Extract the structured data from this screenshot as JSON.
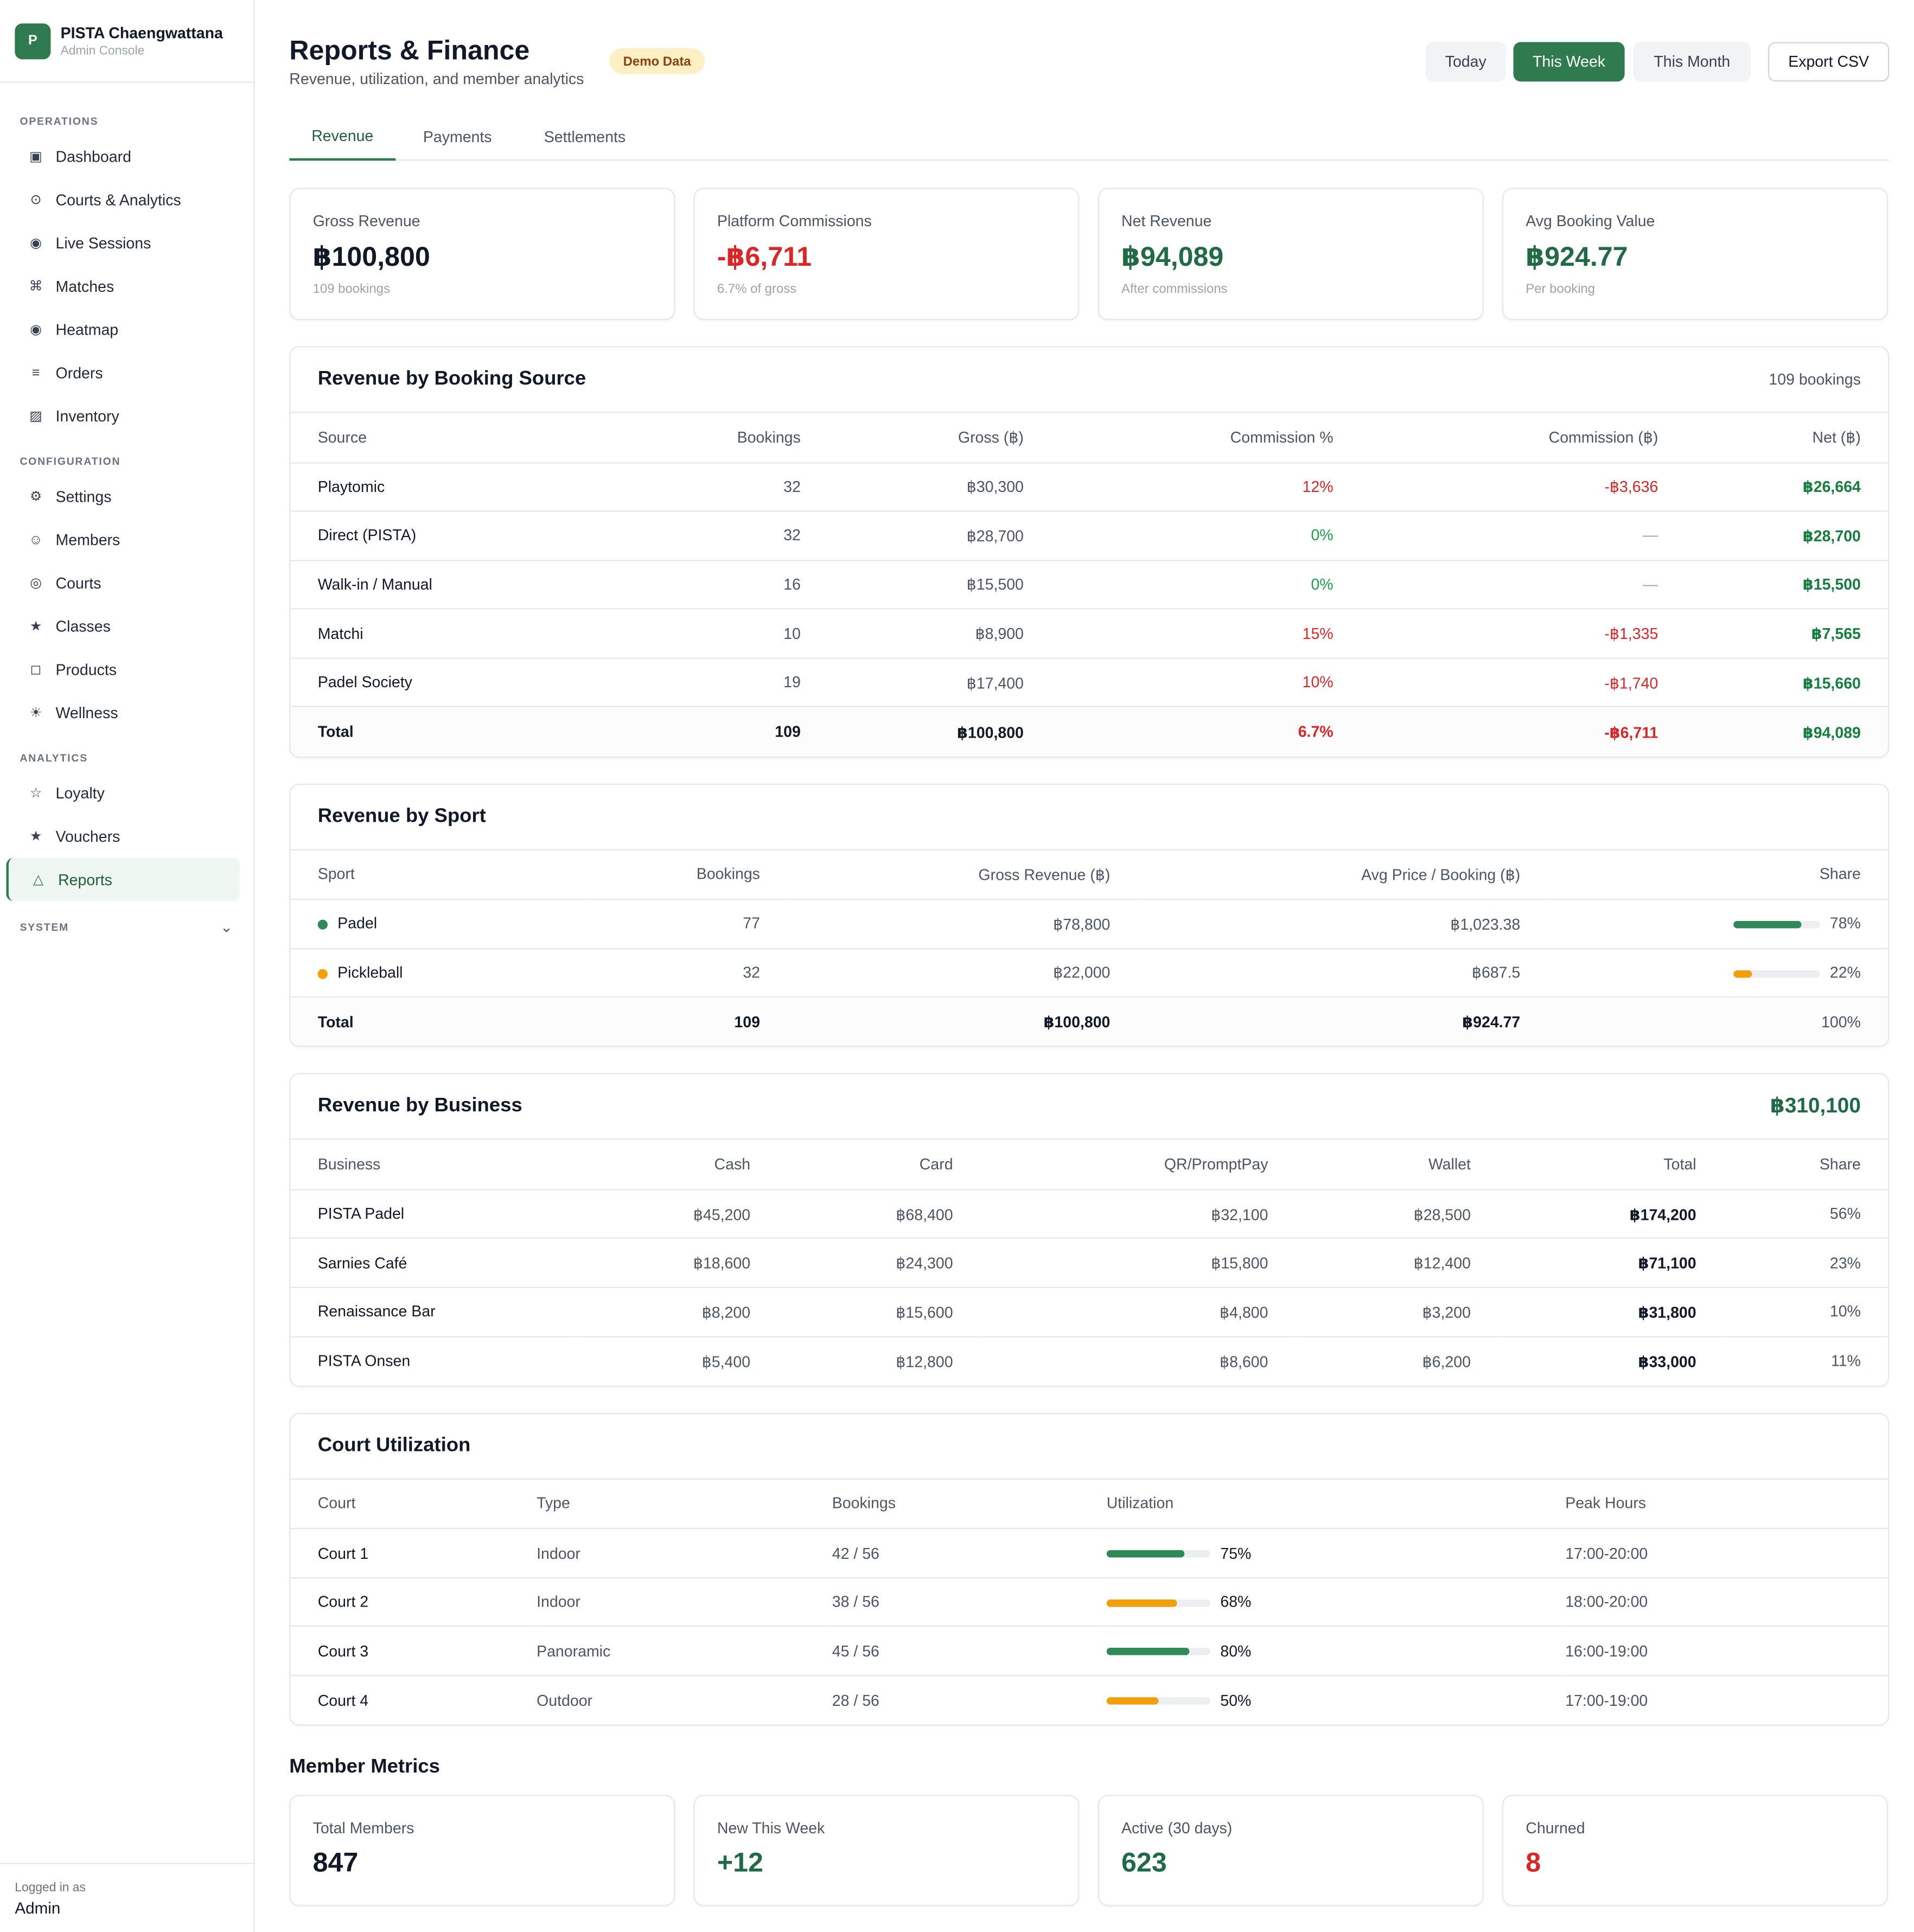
{
  "brand": {
    "initial": "P",
    "name": "PISTA Chaengwattana",
    "sub": "Admin Console"
  },
  "nav": {
    "operations_label": "OPERATIONS",
    "operations": [
      {
        "icon": "▣",
        "label": "Dashboard"
      },
      {
        "icon": "⊙",
        "label": "Courts & Analytics"
      },
      {
        "icon": "◉",
        "label": "Live Sessions"
      },
      {
        "icon": "⌘",
        "label": "Matches"
      },
      {
        "icon": "◉",
        "label": "Heatmap"
      },
      {
        "icon": "≡",
        "label": "Orders"
      },
      {
        "icon": "▨",
        "label": "Inventory"
      }
    ],
    "configuration_label": "CONFIGURATION",
    "configuration": [
      {
        "icon": "⚙",
        "label": "Settings"
      },
      {
        "icon": "☺",
        "label": "Members"
      },
      {
        "icon": "◎",
        "label": "Courts"
      },
      {
        "icon": "★",
        "label": "Classes"
      },
      {
        "icon": "◻",
        "label": "Products"
      },
      {
        "icon": "☀",
        "label": "Wellness"
      }
    ],
    "analytics_label": "ANALYTICS",
    "analytics": [
      {
        "icon": "☆",
        "label": "Loyalty"
      },
      {
        "icon": "★",
        "label": "Vouchers"
      },
      {
        "icon": "△",
        "label": "Reports"
      }
    ],
    "system_label": "SYSTEM",
    "system_chevron": "⌄"
  },
  "footer": {
    "label": "Logged in as",
    "user": "Admin"
  },
  "header": {
    "title": "Reports & Finance",
    "subtitle": "Revenue, utilization, and member analytics",
    "badge": "Demo Data",
    "range_buttons": [
      "Today",
      "This Week",
      "This Month"
    ],
    "export": "Export CSV"
  },
  "tabs": [
    "Revenue",
    "Payments",
    "Settlements"
  ],
  "kpis": [
    {
      "label": "Gross Revenue",
      "value": "฿100,800",
      "sub": "109 bookings",
      "tone": ""
    },
    {
      "label": "Platform Commissions",
      "value": "-฿6,711",
      "sub": "6.7% of gross",
      "tone": "red"
    },
    {
      "label": "Net Revenue",
      "value": "฿94,089",
      "sub": "After commissions",
      "tone": "green"
    },
    {
      "label": "Avg Booking Value",
      "value": "฿924.77",
      "sub": "Per booking",
      "tone": "green"
    }
  ],
  "booking_source": {
    "title": "Revenue by Booking Source",
    "meta": "109 bookings",
    "columns": [
      "Source",
      "Bookings",
      "Gross (฿)",
      "Commission %",
      "Commission (฿)",
      "Net (฿)"
    ],
    "rows": [
      {
        "source": "Playtomic",
        "bookings": "32",
        "gross": "฿30,300",
        "pct": "12%",
        "pct_tone": "red",
        "comm": "-฿3,636",
        "comm_tone": "red",
        "net": "฿26,664"
      },
      {
        "source": "Direct (PISTA)",
        "bookings": "32",
        "gross": "฿28,700",
        "pct": "0%",
        "pct_tone": "green",
        "comm": "—",
        "comm_tone": "dash",
        "net": "฿28,700"
      },
      {
        "source": "Walk-in / Manual",
        "bookings": "16",
        "gross": "฿15,500",
        "pct": "0%",
        "pct_tone": "green",
        "comm": "—",
        "comm_tone": "dash",
        "net": "฿15,500"
      },
      {
        "source": "Matchi",
        "bookings": "10",
        "gross": "฿8,900",
        "pct": "15%",
        "pct_tone": "red",
        "comm": "-฿1,335",
        "comm_tone": "red",
        "net": "฿7,565"
      },
      {
        "source": "Padel Society",
        "bookings": "19",
        "gross": "฿17,400",
        "pct": "10%",
        "pct_tone": "red",
        "comm": "-฿1,740",
        "comm_tone": "red",
        "net": "฿15,660"
      }
    ],
    "total": {
      "source": "Total",
      "bookings": "109",
      "gross": "฿100,800",
      "pct": "6.7%",
      "comm": "-฿6,711",
      "net": "฿94,089"
    }
  },
  "sport": {
    "title": "Revenue by Sport",
    "columns": [
      "Sport",
      "Bookings",
      "Gross Revenue (฿)",
      "Avg Price / Booking (฿)",
      "Share"
    ],
    "rows": [
      {
        "sport": "Padel",
        "color": "#2f8a57",
        "bookings": "77",
        "gross": "฿78,800",
        "avg": "฿1,023.38",
        "share": "78%",
        "share_value": 78
      },
      {
        "sport": "Pickleball",
        "color": "#f59e0b",
        "bookings": "32",
        "gross": "฿22,000",
        "avg": "฿687.5",
        "share": "22%",
        "share_value": 22
      }
    ],
    "total": {
      "sport": "Total",
      "bookings": "109",
      "gross": "฿100,800",
      "avg": "฿924.77",
      "share": "100%"
    }
  },
  "business": {
    "title": "Revenue by Business",
    "meta": "฿310,100",
    "columns": [
      "Business",
      "Cash",
      "Card",
      "QR/PromptPay",
      "Wallet",
      "Total",
      "Share"
    ],
    "rows": [
      {
        "name": "PISTA Padel",
        "cash": "฿45,200",
        "card": "฿68,400",
        "qr": "฿32,100",
        "wallet": "฿28,500",
        "total": "฿174,200",
        "share": "56%"
      },
      {
        "name": "Sarnies Café",
        "cash": "฿18,600",
        "card": "฿24,300",
        "qr": "฿15,800",
        "wallet": "฿12,400",
        "total": "฿71,100",
        "share": "23%"
      },
      {
        "name": "Renaissance Bar",
        "cash": "฿8,200",
        "card": "฿15,600",
        "qr": "฿4,800",
        "wallet": "฿3,200",
        "total": "฿31,800",
        "share": "10%"
      },
      {
        "name": "PISTA Onsen",
        "cash": "฿5,400",
        "card": "฿12,800",
        "qr": "฿8,600",
        "wallet": "฿6,200",
        "total": "฿33,000",
        "share": "11%"
      }
    ]
  },
  "utilization": {
    "title": "Court Utilization",
    "columns": [
      "Court",
      "Type",
      "Bookings",
      "Utilization",
      "Peak Hours"
    ],
    "rows": [
      {
        "court": "Court 1",
        "type": "Indoor",
        "bookings": "42 / 56",
        "util": "75%",
        "util_value": 75,
        "color": "#2f8a57",
        "peak": "17:00-20:00"
      },
      {
        "court": "Court 2",
        "type": "Indoor",
        "bookings": "38 / 56",
        "util": "68%",
        "util_value": 68,
        "color": "#f59e0b",
        "peak": "18:00-20:00"
      },
      {
        "court": "Court 3",
        "type": "Panoramic",
        "bookings": "45 / 56",
        "util": "80%",
        "util_value": 80,
        "color": "#2f8a57",
        "peak": "16:00-19:00"
      },
      {
        "court": "Court 4",
        "type": "Outdoor",
        "bookings": "28 / 56",
        "util": "50%",
        "util_value": 50,
        "color": "#f59e0b",
        "peak": "17:00-19:00"
      }
    ]
  },
  "members": {
    "title": "Member Metrics",
    "cards": [
      {
        "label": "Total Members",
        "value": "847",
        "tone": ""
      },
      {
        "label": "New This Week",
        "value": "+12",
        "tone": "green"
      },
      {
        "label": "Active (30 days)",
        "value": "623",
        "tone": "green"
      },
      {
        "label": "Churned",
        "value": "8",
        "tone": "red"
      }
    ]
  }
}
